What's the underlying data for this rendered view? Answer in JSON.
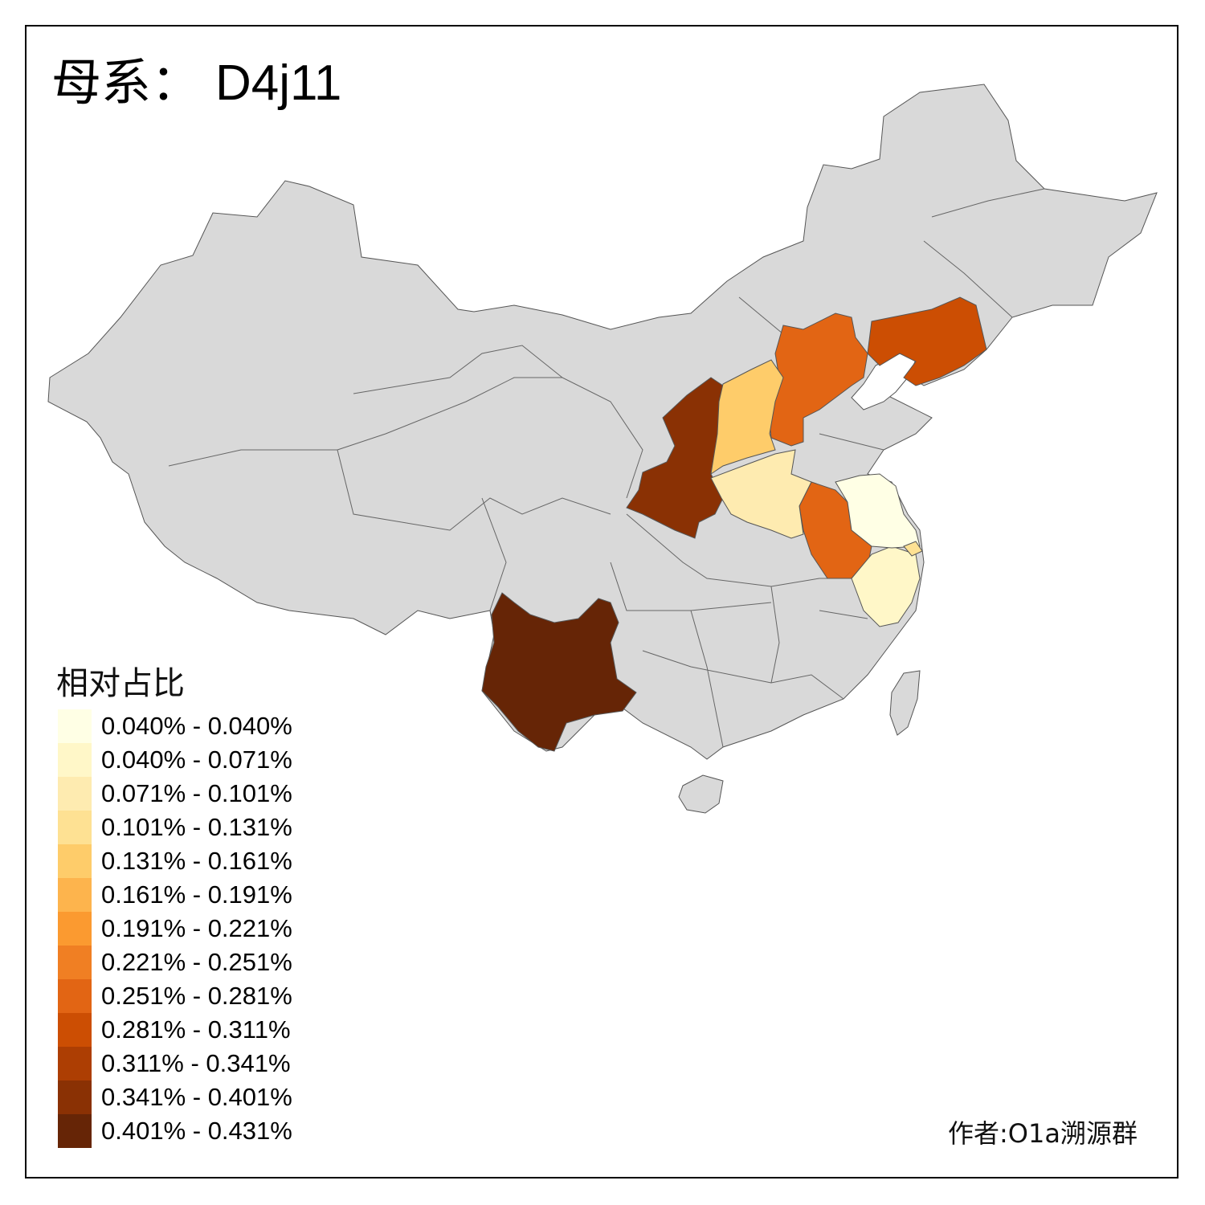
{
  "title": {
    "prefix": "母系：",
    "code": "D4j11"
  },
  "legend": {
    "title": "相对占比",
    "items": [
      {
        "label": "0.040% - 0.040%",
        "color": "#FFFFE5"
      },
      {
        "label": "0.040% - 0.071%",
        "color": "#FFF7C8"
      },
      {
        "label": "0.071% - 0.101%",
        "color": "#FEEBB0"
      },
      {
        "label": "0.101% - 0.131%",
        "color": "#FEE193"
      },
      {
        "label": "0.131% - 0.161%",
        "color": "#FECC6A"
      },
      {
        "label": "0.161% - 0.191%",
        "color": "#FDB44D"
      },
      {
        "label": "0.191% - 0.221%",
        "color": "#FB9A30"
      },
      {
        "label": "0.221% - 0.251%",
        "color": "#F07F23"
      },
      {
        "label": "0.251% - 0.281%",
        "color": "#E26514"
      },
      {
        "label": "0.281% - 0.311%",
        "color": "#CC4E03"
      },
      {
        "label": "0.311% - 0.341%",
        "color": "#AD3E03"
      },
      {
        "label": "0.341% - 0.401%",
        "color": "#8A3104"
      },
      {
        "label": "0.401% - 0.431%",
        "color": "#662506"
      }
    ]
  },
  "credit": "作者:O1a溯源群",
  "colors": {
    "no_data": "#D9D9D9",
    "border": "#555555"
  }
}
